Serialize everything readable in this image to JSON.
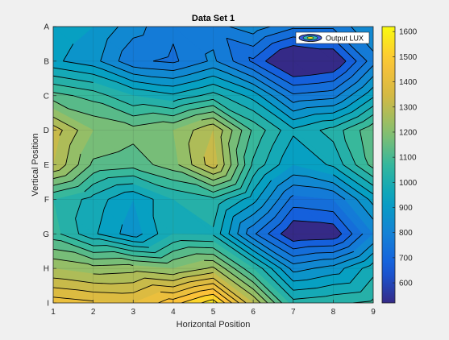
{
  "chart_data": {
    "type": "contour",
    "title": "Data Set 1",
    "xlabel": "Horizontal Position",
    "ylabel": "Vertical Position",
    "x": [
      1,
      2,
      3,
      4,
      5,
      6,
      7,
      8,
      9
    ],
    "y_labels": [
      "A",
      "B",
      "C",
      "D",
      "E",
      "F",
      "G",
      "H",
      "I"
    ],
    "xlim": [
      1,
      9
    ],
    "z": [
      [
        930,
        900,
        820,
        760,
        780,
        830,
        760,
        760,
        850
      ],
      [
        910,
        870,
        760,
        740,
        810,
        690,
        560,
        590,
        780
      ],
      [
        1120,
        1080,
        1000,
        960,
        1020,
        930,
        760,
        780,
        940
      ],
      [
        1330,
        1200,
        1170,
        1200,
        1300,
        1090,
        960,
        1020,
        1140
      ],
      [
        1300,
        1140,
        1120,
        1180,
        1330,
        1040,
        900,
        960,
        1120
      ],
      [
        1050,
        980,
        900,
        1000,
        1040,
        920,
        730,
        750,
        920
      ],
      [
        1070,
        960,
        870,
        1000,
        990,
        760,
        600,
        610,
        800
      ],
      [
        1250,
        1220,
        1230,
        1200,
        1260,
        1050,
        830,
        870,
        980
      ],
      [
        1430,
        1410,
        1400,
        1480,
        1580,
        1300,
        1020,
        1040,
        1060
      ]
    ],
    "levels": [
      650,
      700,
      750,
      800,
      850,
      900,
      950,
      1000,
      1050,
      1100,
      1150,
      1200,
      1250,
      1300,
      1350,
      1400,
      1450,
      1500,
      1550,
      1600
    ],
    "clim": [
      520,
      1620
    ],
    "colorbar_ticks": [
      600,
      700,
      800,
      900,
      1000,
      1100,
      1200,
      1300,
      1400,
      1500,
      1600
    ],
    "legend": {
      "entries": [
        "Output LUX"
      ],
      "location": "top-right"
    },
    "grid": true,
    "colormap": "parula"
  }
}
